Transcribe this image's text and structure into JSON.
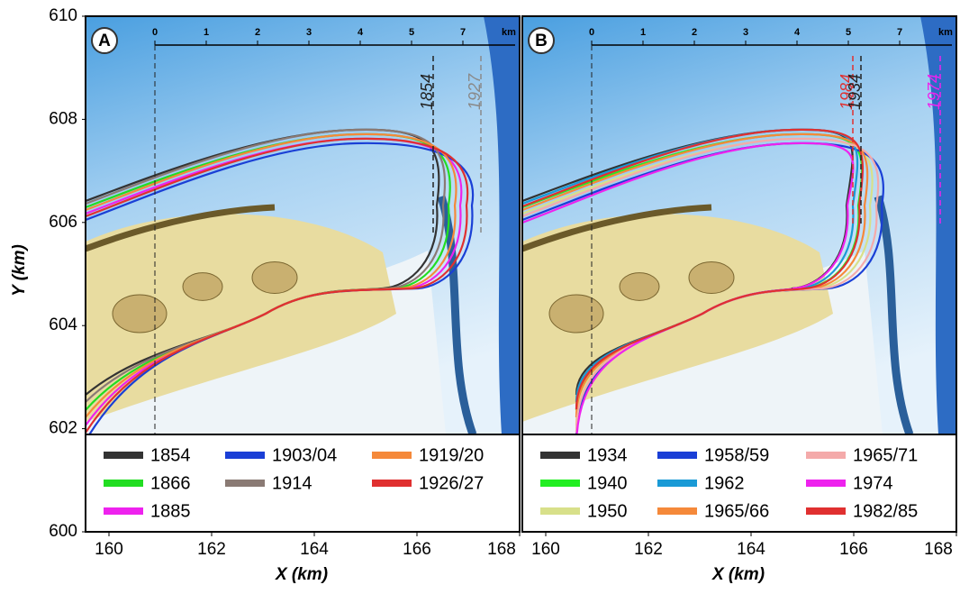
{
  "chart_data": {
    "type": "map",
    "y_axis": {
      "label": "Y (km)",
      "ylim": [
        600,
        610
      ],
      "yticks": [
        600,
        602,
        604,
        606,
        608,
        610
      ]
    },
    "panels": [
      {
        "label": "A",
        "x_label": "X (km)",
        "xticks": [
          160,
          162,
          164,
          166,
          168
        ],
        "scale_ticks": [
          0,
          1,
          2,
          3,
          4,
          5,
          7
        ],
        "scale_unit": "km",
        "markers": [
          {
            "label": "1854",
            "color": "#222222"
          },
          {
            "label": "1927",
            "color": "#8a8a8a"
          }
        ],
        "series": [
          {
            "name": "1854",
            "color": "#333333"
          },
          {
            "name": "1866",
            "color": "#22dd22"
          },
          {
            "name": "1885",
            "color": "#ee22ee"
          },
          {
            "name": "1903/04",
            "color": "#1a3fd6"
          },
          {
            "name": "1914",
            "color": "#8a7a74"
          },
          {
            "name": "1919/20",
            "color": "#f5893a"
          },
          {
            "name": "1926/27",
            "color": "#e03030"
          }
        ]
      },
      {
        "label": "B",
        "x_label": "X (km)",
        "xticks": [
          160,
          162,
          164,
          166,
          168
        ],
        "scale_ticks": [
          0,
          1,
          2,
          3,
          4,
          5,
          7
        ],
        "scale_unit": "km",
        "markers": [
          {
            "label": "1984",
            "color": "#e03030"
          },
          {
            "label": "1934",
            "color": "#222222"
          },
          {
            "label": "1974",
            "color": "#ee22ee"
          }
        ],
        "series": [
          {
            "name": "1934",
            "color": "#333333"
          },
          {
            "name": "1940",
            "color": "#22ee22"
          },
          {
            "name": "1950",
            "color": "#d8e08a"
          },
          {
            "name": "1958/59",
            "color": "#1a3fd6"
          },
          {
            "name": "1962",
            "color": "#1a9ad6"
          },
          {
            "name": "1965/66",
            "color": "#f5893a"
          },
          {
            "name": "1965/71",
            "color": "#f4aaaa"
          },
          {
            "name": "1974",
            "color": "#ee22ee"
          },
          {
            "name": "1982/85",
            "color": "#e03030"
          }
        ]
      }
    ]
  }
}
